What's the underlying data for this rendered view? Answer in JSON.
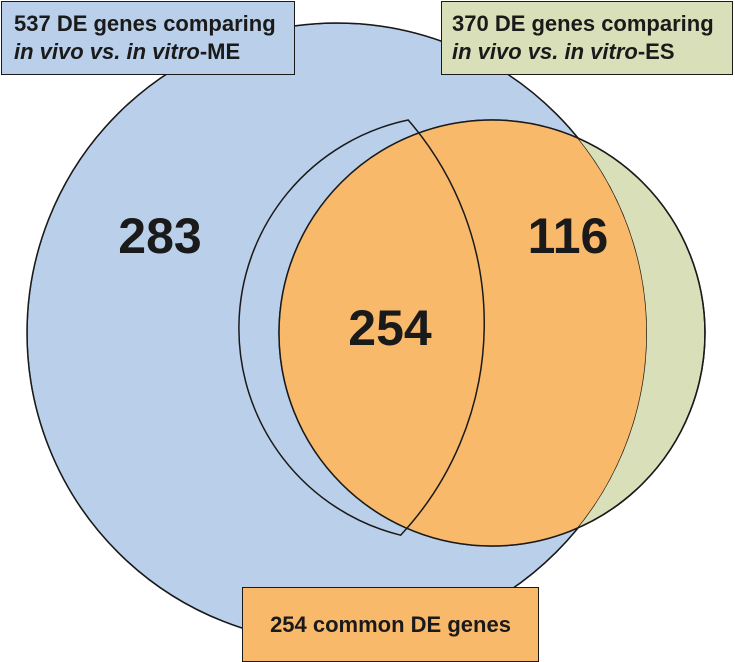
{
  "sets": {
    "left": {
      "line1": "537 DE genes comparing",
      "line2_italic": "in vivo vs. in vitro",
      "line2_suffix": "-ME",
      "only_count": "283",
      "color": "#b9cfea"
    },
    "right": {
      "line1": "370 DE genes comparing",
      "line2_italic": "in vivo vs. in vitro",
      "line2_suffix": "-ES",
      "only_count": "116",
      "color": "#d9dfb8"
    },
    "overlap": {
      "count": "254",
      "label": "254 common DE genes",
      "color": "#f8b96b"
    }
  }
}
